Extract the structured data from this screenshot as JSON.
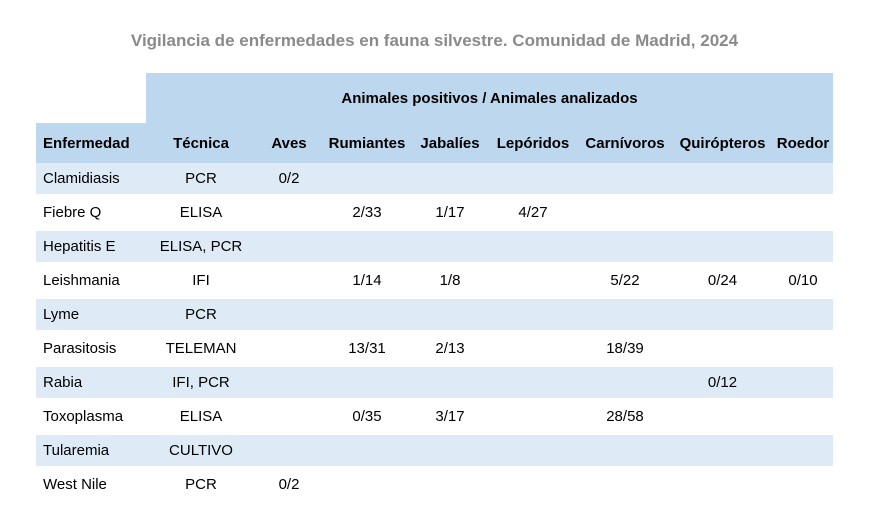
{
  "title": "Vigilancia de enfermedades en fauna silvestre. Comunidad de Madrid, 2024",
  "table": {
    "band_header": "Animales positivos / Animales analizados",
    "columns": [
      "Enfermedad",
      "Técnica",
      "Aves",
      "Rumiantes",
      "Jabalíes",
      "Lepóridos",
      "Carnívoros",
      "Quirópteros",
      "Roedor"
    ],
    "rows": [
      {
        "enfermedad": "Clamidiasis",
        "tecnica": "PCR",
        "values": [
          "0/2",
          "",
          "",
          "",
          "",
          "",
          ""
        ]
      },
      {
        "enfermedad": "Fiebre Q",
        "tecnica": "ELISA",
        "values": [
          "",
          "2/33",
          "1/17",
          "4/27",
          "",
          "",
          ""
        ]
      },
      {
        "enfermedad": "Hepatitis E",
        "tecnica": "ELISA, PCR",
        "values": [
          "",
          "",
          "",
          "",
          "",
          "",
          ""
        ]
      },
      {
        "enfermedad": "Leishmania",
        "tecnica": "IFI",
        "values": [
          "",
          "1/14",
          "1/8",
          "",
          "5/22",
          "0/24",
          "0/10"
        ]
      },
      {
        "enfermedad": "Lyme",
        "tecnica": "PCR",
        "values": [
          "",
          "",
          "",
          "",
          "",
          "",
          ""
        ]
      },
      {
        "enfermedad": "Parasitosis",
        "tecnica": "TELEMAN",
        "values": [
          "",
          "13/31",
          "2/13",
          "",
          "18/39",
          "",
          ""
        ]
      },
      {
        "enfermedad": "Rabia",
        "tecnica": "IFI, PCR",
        "values": [
          "",
          "",
          "",
          "",
          "",
          "0/12",
          ""
        ]
      },
      {
        "enfermedad": "Toxoplasma",
        "tecnica": "ELISA",
        "values": [
          "",
          "0/35",
          "3/17",
          "",
          "28/58",
          "",
          ""
        ]
      },
      {
        "enfermedad": "Tularemia",
        "tecnica": "CULTIVO",
        "values": [
          "",
          "",
          "",
          "",
          "",
          "",
          ""
        ]
      },
      {
        "enfermedad": "West Nile",
        "tecnica": "PCR",
        "values": [
          "0/2",
          "",
          "",
          "",
          "",
          "",
          ""
        ]
      }
    ]
  },
  "colors": {
    "header_bg": "#BDD7EE",
    "row_alt_bg": "#DEEBF7",
    "title_color": "#8A8A8A",
    "text_color": "#000000"
  }
}
